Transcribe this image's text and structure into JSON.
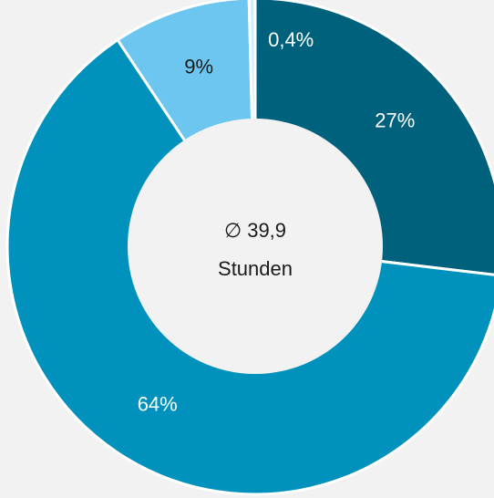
{
  "chart_data": {
    "type": "donut",
    "center_text": [
      "∅ 39,9",
      "Stunden"
    ],
    "values": [
      27,
      64,
      9,
      0.4
    ],
    "value_labels": [
      "27%",
      "64%",
      "9%",
      "0,4%"
    ],
    "colors": [
      "#00617d",
      "#0092bd",
      "#6dc6f0",
      "#cfeefb"
    ],
    "label_colors": [
      "#ffffff",
      "#ffffff",
      "#1a1a1a",
      "#ffffff"
    ]
  }
}
